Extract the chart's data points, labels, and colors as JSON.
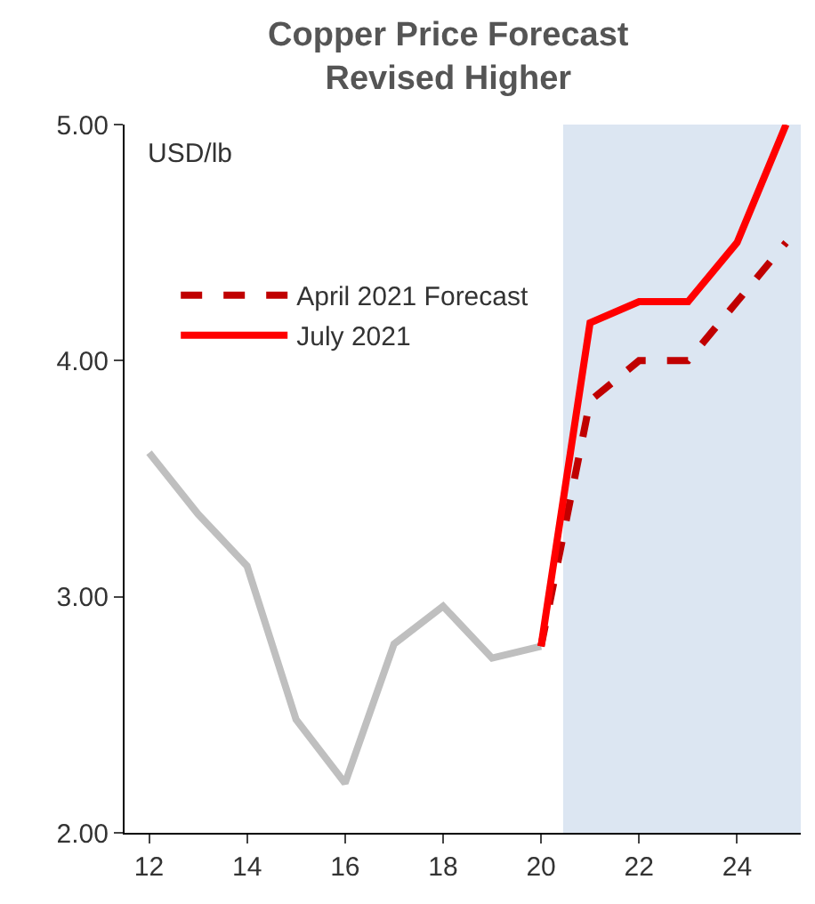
{
  "chart_data": {
    "type": "line",
    "title": "Copper Price Forecast\nRevised Higher",
    "ylabel": "USD/lb",
    "xlim": [
      11.5,
      25.3
    ],
    "xticks": [
      12,
      14,
      16,
      18,
      20,
      22,
      24
    ],
    "ylim": [
      2.0,
      5.0
    ],
    "yticks": [
      {
        "value": 2.0,
        "label": "2.00"
      },
      {
        "value": 3.0,
        "label": "3.00"
      },
      {
        "value": 4.0,
        "label": "4.00"
      },
      {
        "value": 5.0,
        "label": "5.00"
      }
    ],
    "grid": false,
    "legend": "top left",
    "bands": [
      {
        "axis": "x",
        "from": 20.45,
        "to": 25.3,
        "color": "#dce6f2"
      }
    ],
    "series": [
      {
        "color": "#bfbfbf",
        "x": [
          12,
          13,
          14,
          15,
          16,
          17,
          18,
          19,
          20
        ],
        "values": [
          3.61,
          3.35,
          3.13,
          2.48,
          2.21,
          2.8,
          2.96,
          2.74,
          2.79
        ]
      },
      {
        "name": "April 2021 Forecast",
        "color": "#c00000",
        "line_style": "dashed",
        "x": [
          20,
          21,
          22,
          23,
          24,
          25
        ],
        "values": [
          2.79,
          3.83,
          4.0,
          4.0,
          4.25,
          4.5
        ]
      },
      {
        "name": "July 2021",
        "color": "#ff0000",
        "x": [
          20,
          21,
          22,
          23,
          24,
          25
        ],
        "values": [
          2.79,
          4.16,
          4.25,
          4.25,
          4.5,
          5.0
        ]
      }
    ]
  }
}
